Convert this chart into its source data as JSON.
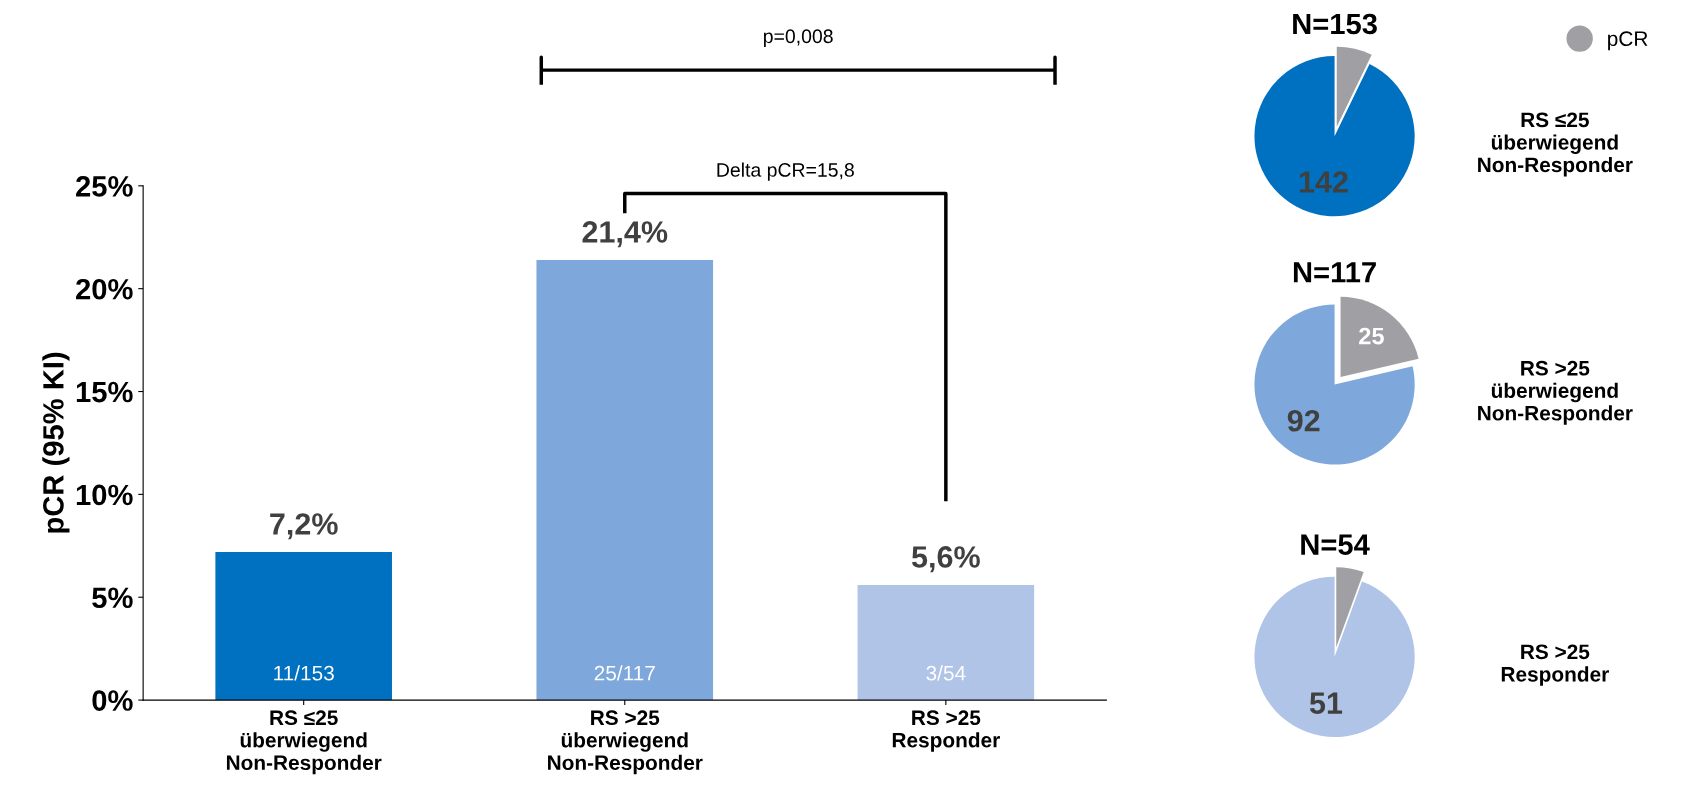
{
  "chart_data": [
    {
      "type": "bar",
      "ylabel": "pCR (95% KI)",
      "categories": [
        "RS ≤25\nüberwiegend\nNon-Responder",
        "RS >25\nüberwiegend\nNon-Responder",
        "RS >25\nResponder"
      ],
      "values": [
        7.2,
        21.4,
        5.6
      ],
      "colors": [
        "#0070c0",
        "#7ea8dc",
        "#b0c4e8"
      ],
      "value_labels": [
        "7,2%",
        "21,4%",
        "5,6%"
      ],
      "ylim": [
        0,
        25
      ],
      "yticks": [
        {
          "value": 0,
          "label": "0%"
        },
        {
          "value": 5,
          "label": "5%"
        },
        {
          "value": 10,
          "label": "10%"
        },
        {
          "value": 15,
          "label": "15%"
        },
        {
          "value": 20,
          "label": "20%"
        },
        {
          "value": 25,
          "label": "25%"
        }
      ],
      "grid": false,
      "annotations": [
        "p=0,008",
        "Delta pCR=15,8",
        {
          "text": "11/153",
          "x": "RS ≤25\nüberwiegend\nNon-Responder",
          "y": 0
        },
        {
          "text": "25/117",
          "x": "RS >25\nüberwiegend\nNon-Responder",
          "y": 0
        },
        {
          "text": "3/54",
          "x": "RS >25\nResponder",
          "y": 0
        }
      ]
    },
    {
      "type": "pie",
      "title": "N=153",
      "categories": [
        "pCR",
        null
      ],
      "values": [
        11,
        142
      ],
      "colors": [
        "#a0a0a4",
        "#0070c0"
      ],
      "value_labels": [
        null,
        "142"
      ],
      "legend": "top right",
      "annotations": [
        "RS ≤25\nüberwiegend\nNon-Responder"
      ]
    },
    {
      "type": "pie",
      "title": "N=117",
      "categories": [
        null,
        null
      ],
      "values": [
        25,
        92
      ],
      "colors": [
        "#a0a0a4",
        "#7ea8dc"
      ],
      "value_labels": [
        "25",
        "92"
      ],
      "legend": false,
      "annotations": [
        "RS >25\nüberwiegend\nNon-Responder"
      ]
    },
    {
      "type": "pie",
      "title": "N=54",
      "categories": [
        null,
        null
      ],
      "values": [
        3,
        51
      ],
      "colors": [
        "#a0a0a4",
        "#b0c4e8"
      ],
      "value_labels": [
        null,
        "51"
      ],
      "legend": false,
      "annotations": [
        "RS >25\nResponder"
      ]
    }
  ]
}
